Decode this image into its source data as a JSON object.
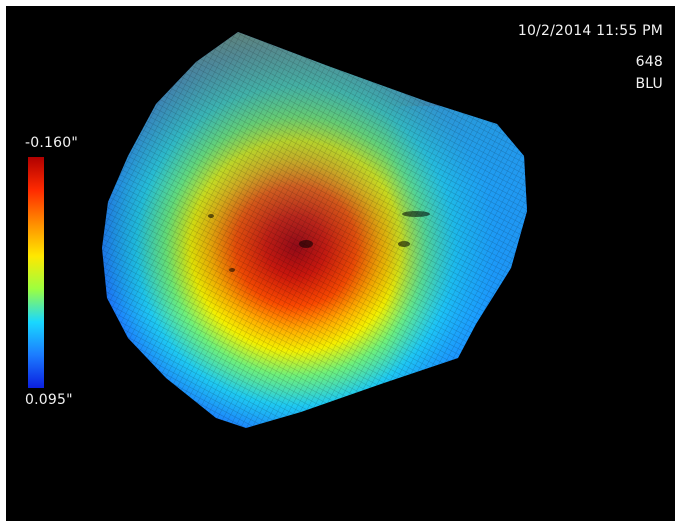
{
  "overlay": {
    "timestamp": "10/2/2014  11:55 PM",
    "probe_id": "648",
    "probe_label": "BLU"
  },
  "legend": {
    "max_label": "-0.160\"",
    "min_label": "0.095\"",
    "colors": [
      "#b00000",
      "#ff2a00",
      "#ff8c00",
      "#ffe800",
      "#9cff40",
      "#19d8ff",
      "#1c7cff",
      "#0b1fe0"
    ]
  },
  "scan": {
    "background": "#000000"
  }
}
